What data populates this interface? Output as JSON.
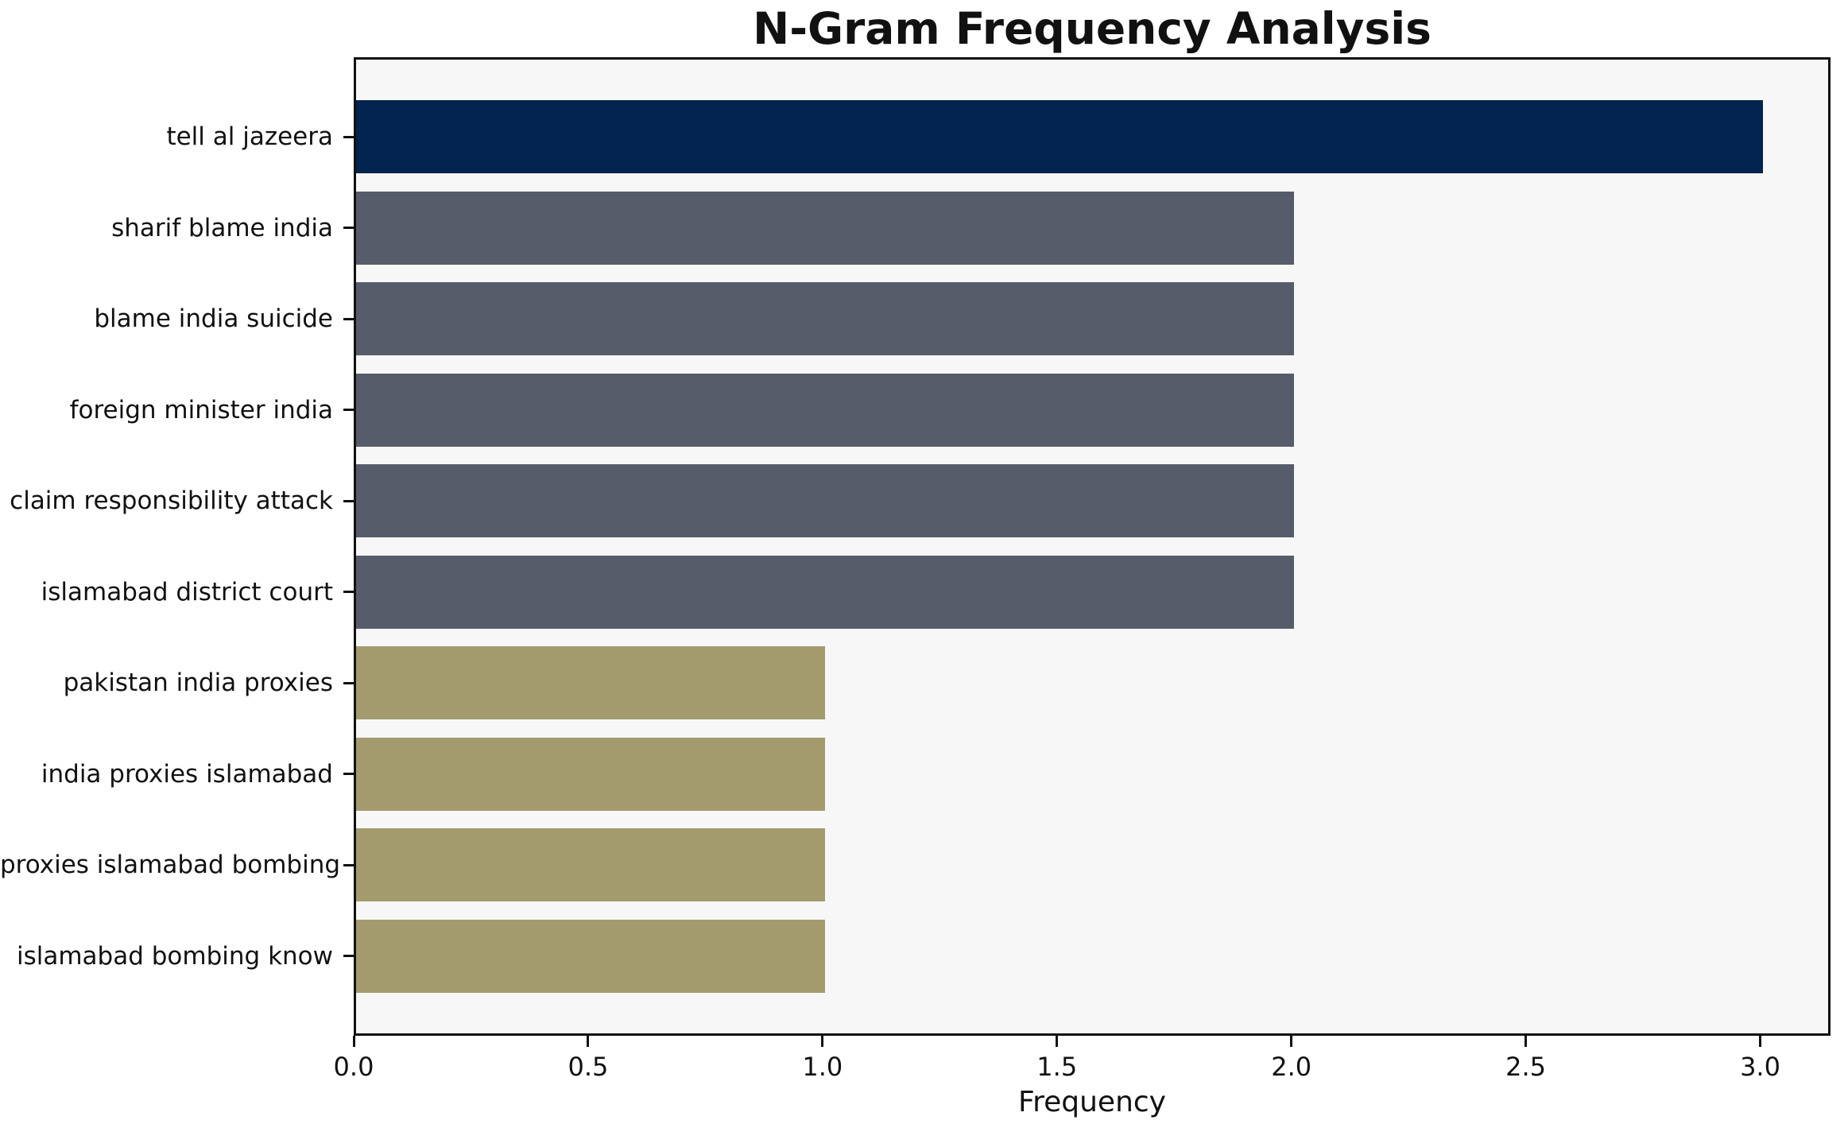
{
  "title": "N-Gram Frequency Analysis",
  "chart_data": {
    "type": "bar",
    "orientation": "horizontal",
    "title": "N-Gram Frequency Analysis",
    "xlabel": "Frequency",
    "ylabel": "",
    "categories": [
      "tell al jazeera",
      "sharif blame india",
      "blame india suicide",
      "foreign minister india",
      "claim responsibility attack",
      "islamabad district court",
      "pakistan india proxies",
      "india proxies islamabad",
      "proxies islamabad bombing",
      "islamabad bombing know"
    ],
    "values": [
      3,
      2,
      2,
      2,
      2,
      2,
      1,
      1,
      1,
      1
    ],
    "bar_colors": [
      "#02234e",
      "#575c6b",
      "#575c6b",
      "#575c6b",
      "#575c6b",
      "#575c6b",
      "#a39b6e",
      "#a39b6e",
      "#a39b6e",
      "#a39b6e"
    ],
    "xlim": [
      0,
      3.15
    ],
    "xticks": [
      0.0,
      0.5,
      1.0,
      1.5,
      2.0,
      2.5,
      3.0
    ],
    "xtick_labels": [
      "0.0",
      "0.5",
      "1.0",
      "1.5",
      "2.0",
      "2.5",
      "3.0"
    ],
    "grid": false,
    "legend": null,
    "colors": {
      "top_bar": "#02234e",
      "mid_bar": "#575c6b",
      "low_bar": "#a39b6e",
      "plot_background": "#f7f7f7",
      "figure_background": "#ffffff",
      "spine": "#111111",
      "text": "#111111"
    }
  }
}
